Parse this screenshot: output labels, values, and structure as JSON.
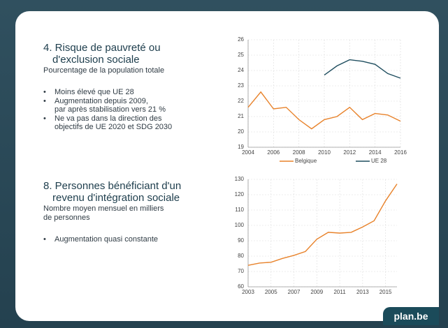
{
  "sections": [
    {
      "title": [
        "4. Risque de pauvreté ou",
        "d'exclusion sociale"
      ],
      "subtitle": [
        "Pourcentage de la population totale"
      ],
      "bullets": [
        [
          "Moins élevé que UE 28"
        ],
        [
          "Augmentation depuis 2009,",
          "par après stabilisation vers 21 %"
        ],
        [
          "Ne va pas dans la direction des",
          "objectifs de UE 2020 et SDG 2030"
        ]
      ]
    },
    {
      "title": [
        "8. Personnes bénéficiant d'un",
        "revenu d'intégration sociale"
      ],
      "subtitle": [
        "Nombre moyen mensuel en milliers",
        "de personnes"
      ],
      "bullets": [
        [
          "Augmentation quasi constante"
        ]
      ]
    }
  ],
  "chart_data": [
    {
      "type": "line",
      "x": [
        2004,
        2005,
        2006,
        2007,
        2008,
        2009,
        2010,
        2011,
        2012,
        2013,
        2014,
        2015,
        2016
      ],
      "xlim": [
        2004,
        2016
      ],
      "xticks": [
        2004,
        2006,
        2008,
        2010,
        2012,
        2014,
        2016
      ],
      "ylim": [
        19,
        26
      ],
      "yticks": [
        19,
        20,
        21,
        22,
        23,
        24,
        25,
        26
      ],
      "grid": true,
      "legend": "bottom",
      "series": [
        {
          "name": "Belgique",
          "color": "#e8822a",
          "values": [
            21.6,
            22.6,
            21.5,
            21.6,
            20.8,
            20.2,
            20.8,
            21.0,
            21.6,
            20.8,
            21.2,
            21.1,
            20.7
          ]
        },
        {
          "name": "UE 28",
          "color": "#1f4e5f",
          "values": [
            null,
            null,
            null,
            null,
            null,
            null,
            23.7,
            24.3,
            24.7,
            24.6,
            24.4,
            23.8,
            23.5
          ]
        }
      ]
    },
    {
      "type": "line",
      "x": [
        2003,
        2004,
        2005,
        2006,
        2007,
        2008,
        2009,
        2010,
        2011,
        2012,
        2013,
        2014,
        2015,
        2016
      ],
      "xlim": [
        2003,
        2016
      ],
      "xticks": [
        2003,
        2005,
        2007,
        2009,
        2011,
        2013,
        2015
      ],
      "ylim": [
        60,
        130
      ],
      "yticks": [
        60,
        70,
        80,
        90,
        100,
        110,
        120,
        130
      ],
      "grid": true,
      "series": [
        {
          "color": "#e8822a",
          "values": [
            74,
            75.5,
            76,
            78.5,
            80.5,
            83,
            91,
            95.5,
            95,
            95.5,
            99,
            103,
            116,
            127
          ]
        }
      ]
    }
  ],
  "footer": {
    "brand": "plan.be"
  }
}
